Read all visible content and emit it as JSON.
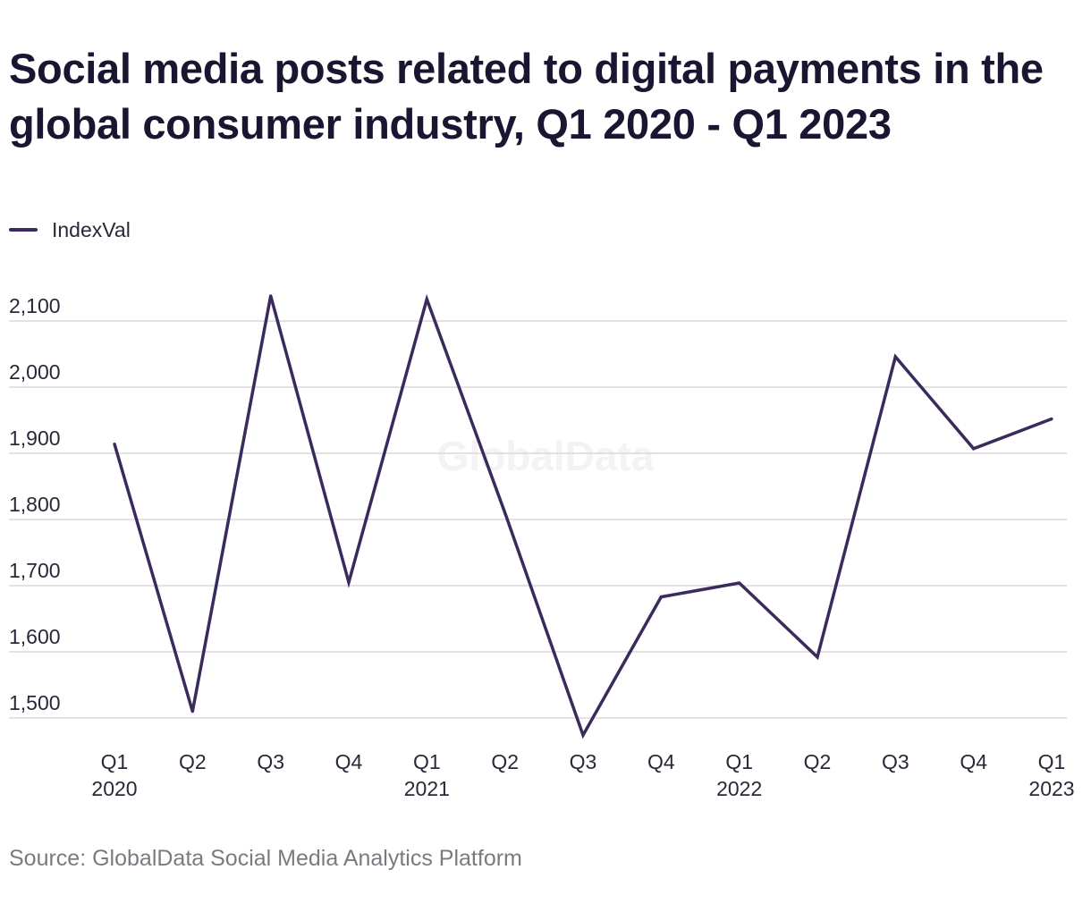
{
  "title": "Social media posts related to digital payments in the global consumer industry, Q1 2020 - Q1 2023",
  "source": "Source: GlobalData Social Media Analytics Platform",
  "watermark": "GlobalData",
  "colors": {
    "line": "#3b2a5c",
    "grid": "#d9d9d9",
    "text": "#1c1a30",
    "muted": "#7a7a82"
  },
  "chart_data": {
    "type": "line",
    "categories": [
      "Q1 2020",
      "Q2 2020",
      "Q3 2020",
      "Q4 2020",
      "Q1 2021",
      "Q2 2021",
      "Q3 2021",
      "Q4 2021",
      "Q1 2022",
      "Q2 2022",
      "Q3 2022",
      "Q4 2022",
      "Q1 2023"
    ],
    "tick_labels": [
      {
        "quarter": "Q1",
        "year": "2020"
      },
      {
        "quarter": "Q2",
        "year": ""
      },
      {
        "quarter": "Q3",
        "year": ""
      },
      {
        "quarter": "Q4",
        "year": ""
      },
      {
        "quarter": "Q1",
        "year": "2021"
      },
      {
        "quarter": "Q2",
        "year": ""
      },
      {
        "quarter": "Q3",
        "year": ""
      },
      {
        "quarter": "Q4",
        "year": ""
      },
      {
        "quarter": "Q1",
        "year": "2022"
      },
      {
        "quarter": "Q2",
        "year": ""
      },
      {
        "quarter": "Q3",
        "year": ""
      },
      {
        "quarter": "Q4",
        "year": ""
      },
      {
        "quarter": "Q1",
        "year": "2023"
      }
    ],
    "series": [
      {
        "name": "IndexVal",
        "values": [
          1914,
          1510,
          2138,
          1705,
          2133,
          1810,
          1474,
          1683,
          1704,
          1592,
          2046,
          1907,
          1952
        ]
      }
    ],
    "yticks": [
      1500,
      1600,
      1700,
      1800,
      1900,
      2000,
      2100
    ],
    "ytick_labels": [
      "1,500",
      "1,600",
      "1,700",
      "1,800",
      "1,900",
      "2,000",
      "2,100"
    ],
    "xlabel": "",
    "ylabel": "",
    "legend": "top-left",
    "grid": true
  }
}
